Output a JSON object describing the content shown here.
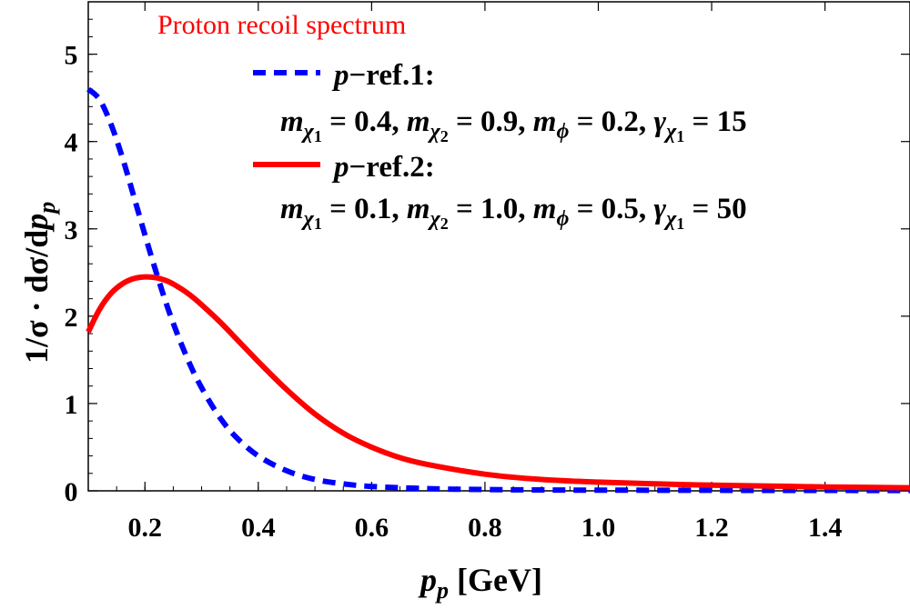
{
  "chart_data": {
    "type": "line",
    "title": "Proton recoil spectrum",
    "title_color": "#ff0000",
    "xlabel": {
      "symbol": "p",
      "sub": "p",
      "unit": "[GeV]"
    },
    "ylabel": {
      "prefix": "1/σ · dσ/d",
      "symbol": "p",
      "sub": "p"
    },
    "xlim": [
      0.1,
      1.55
    ],
    "ylim": [
      0,
      5.6
    ],
    "x_ticks": [
      0.2,
      0.4,
      0.6,
      0.8,
      1.0,
      1.2,
      1.4
    ],
    "x_tick_labels": [
      "0.2",
      "0.4",
      "0.6",
      "0.8",
      "1.0",
      "1.2",
      "1.4"
    ],
    "y_ticks": [
      0,
      1,
      2,
      3,
      4,
      5
    ],
    "y_tick_labels": [
      "0",
      "1",
      "2",
      "3",
      "4",
      "5"
    ],
    "series": [
      {
        "name": "p−ref.1:",
        "label_symbol": "p",
        "label_rest": "−ref.1:",
        "params": "mχ1 = 0.4, mχ2 = 0.9, mφ = 0.2, γχ1 = 15",
        "params_parts": {
          "m1": "0.4",
          "m2": "0.9",
          "mphi": "0.2",
          "gamma": "15"
        },
        "color": "#0000ff",
        "style": "dashed",
        "x": [
          0.1,
          0.12,
          0.14,
          0.16,
          0.18,
          0.2,
          0.22,
          0.24,
          0.26,
          0.28,
          0.3,
          0.33,
          0.36,
          0.4,
          0.45,
          0.5,
          0.55,
          0.6,
          0.7,
          0.8,
          0.9,
          1.0,
          1.2,
          1.4,
          1.55
        ],
        "y": [
          4.6,
          4.48,
          4.2,
          3.82,
          3.38,
          2.93,
          2.5,
          2.1,
          1.75,
          1.44,
          1.18,
          0.86,
          0.62,
          0.4,
          0.23,
          0.13,
          0.08,
          0.05,
          0.025,
          0.015,
          0.01,
          0.008,
          0.006,
          0.005,
          0.004
        ]
      },
      {
        "name": "p−ref.2:",
        "label_symbol": "p",
        "label_rest": "−ref.2:",
        "params": "mχ1 = 0.1, mχ2 = 1.0, mφ = 0.5, γχ1 = 50",
        "params_parts": {
          "m1": "0.1",
          "m2": "1.0",
          "mphi": "0.5",
          "gamma": "50"
        },
        "color": "#ff0000",
        "style": "solid",
        "x": [
          0.1,
          0.12,
          0.14,
          0.16,
          0.18,
          0.2,
          0.22,
          0.24,
          0.26,
          0.28,
          0.3,
          0.33,
          0.36,
          0.4,
          0.45,
          0.5,
          0.55,
          0.6,
          0.65,
          0.7,
          0.8,
          0.9,
          1.0,
          1.1,
          1.2,
          1.3,
          1.4,
          1.55
        ],
        "y": [
          1.82,
          2.08,
          2.26,
          2.37,
          2.43,
          2.45,
          2.44,
          2.4,
          2.33,
          2.24,
          2.13,
          1.95,
          1.75,
          1.48,
          1.16,
          0.88,
          0.66,
          0.5,
          0.38,
          0.3,
          0.19,
          0.13,
          0.1,
          0.08,
          0.065,
          0.055,
          0.045,
          0.035
        ]
      }
    ]
  }
}
